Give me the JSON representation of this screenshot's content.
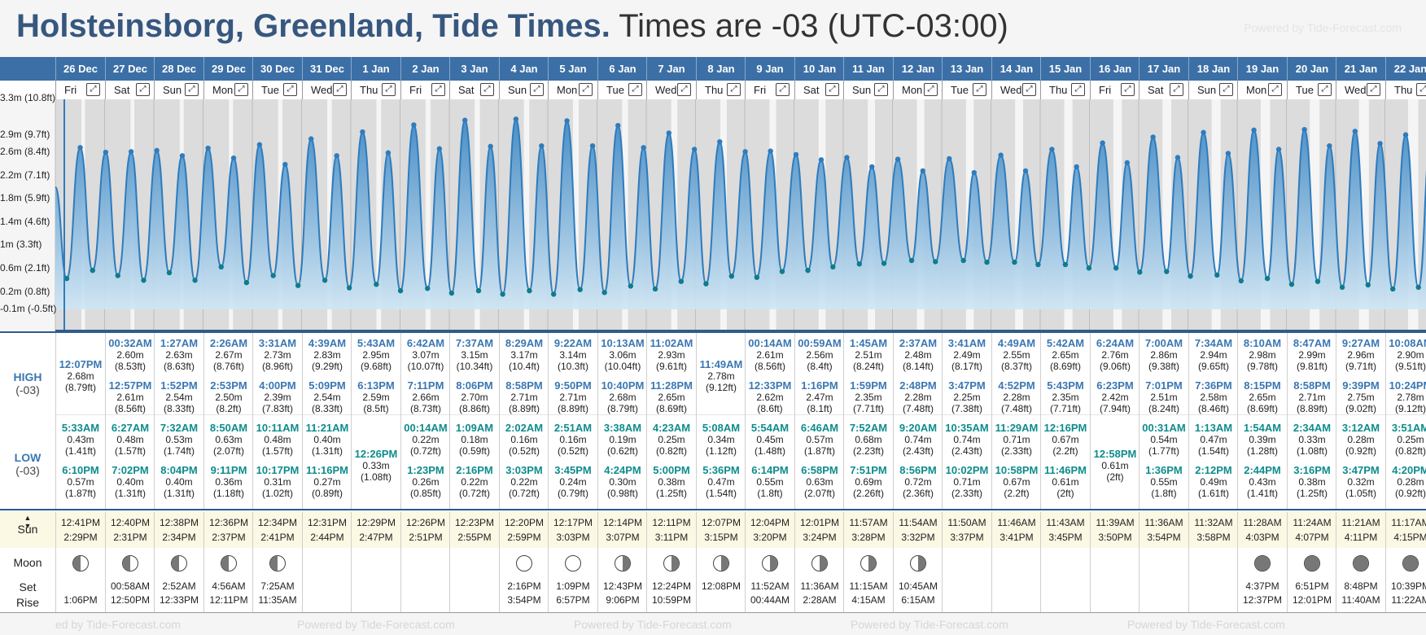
{
  "title": {
    "location": "Holsteinsborg, Greenland, Tide Times.",
    "timezone": "Times are -03 (UTC-03:00)"
  },
  "powered_by": "Powered by Tide-Forecast.com",
  "footer_text": "Powered by Tide-Forecast.com",
  "footer_fragment": "ed by Tide-Forecast.com",
  "y_axis": [
    "2.9m (9.7ft)",
    "2.6m (8.4ft)",
    "2.2m (7.1ft)",
    "1.8m (5.9ft)",
    "1.4m (4.6ft)",
    "1m (3.3ft)",
    "0.6m (2.1ft)",
    "0.2m (0.8ft)",
    "-0.1m (-0.5ft)"
  ],
  "y_axis_top_partial": "3.3m (10.8ft)",
  "row_labels": {
    "high": "HIGH",
    "low": "LOW",
    "tz": "(-03)",
    "sun": "Sun",
    "moon": "Moon",
    "set": "Set",
    "rise": "Rise"
  },
  "colors": {
    "header_bar": "#3c6fa6",
    "high_text": "#3a77b3",
    "low_text": "#0e8c8c",
    "tide_fill": "#4a90c8",
    "sun_row": "#fbf8e4"
  },
  "expand_icon": "expand-icon",
  "days": [
    {
      "date": "26 Dec",
      "wd": "Fri",
      "high": [
        {
          "t": "12:07PM",
          "m": "2.68m",
          "f": "(8.79ft)"
        }
      ],
      "low": [
        {
          "t": "5:33AM",
          "m": "0.43m",
          "f": "(1.41ft)"
        },
        {
          "t": "6:10PM",
          "m": "0.57m",
          "f": "(1.87ft)"
        }
      ],
      "sun": [
        "12:41PM",
        "2:29PM"
      ],
      "moon": "waxing",
      "set": "",
      "rise": "1:06PM"
    },
    {
      "date": "27 Dec",
      "wd": "Sat",
      "high": [
        {
          "t": "00:32AM",
          "m": "2.60m",
          "f": "(8.53ft)"
        },
        {
          "t": "12:57PM",
          "m": "2.61m",
          "f": "(8.56ft)"
        }
      ],
      "low": [
        {
          "t": "6:27AM",
          "m": "0.48m",
          "f": "(1.57ft)"
        },
        {
          "t": "7:02PM",
          "m": "0.40m",
          "f": "(1.31ft)"
        }
      ],
      "sun": [
        "12:40PM",
        "2:31PM"
      ],
      "moon": "waxing",
      "set": "00:58AM",
      "rise": "12:50PM"
    },
    {
      "date": "28 Dec",
      "wd": "Sun",
      "high": [
        {
          "t": "1:27AM",
          "m": "2.63m",
          "f": "(8.63ft)"
        },
        {
          "t": "1:52PM",
          "m": "2.54m",
          "f": "(8.33ft)"
        }
      ],
      "low": [
        {
          "t": "7:32AM",
          "m": "0.53m",
          "f": "(1.74ft)"
        },
        {
          "t": "8:04PM",
          "m": "0.40m",
          "f": "(1.31ft)"
        }
      ],
      "sun": [
        "12:38PM",
        "2:34PM"
      ],
      "moon": "waxing",
      "set": "2:52AM",
      "rise": "12:33PM"
    },
    {
      "date": "29 Dec",
      "wd": "Mon",
      "high": [
        {
          "t": "2:26AM",
          "m": "2.67m",
          "f": "(8.76ft)"
        },
        {
          "t": "2:53PM",
          "m": "2.50m",
          "f": "(8.2ft)"
        }
      ],
      "low": [
        {
          "t": "8:50AM",
          "m": "0.63m",
          "f": "(2.07ft)"
        },
        {
          "t": "9:11PM",
          "m": "0.36m",
          "f": "(1.18ft)"
        }
      ],
      "sun": [
        "12:36PM",
        "2:37PM"
      ],
      "moon": "waxing",
      "set": "4:56AM",
      "rise": "12:11PM"
    },
    {
      "date": "30 Dec",
      "wd": "Tue",
      "high": [
        {
          "t": "3:31AM",
          "m": "2.73m",
          "f": "(8.96ft)"
        },
        {
          "t": "4:00PM",
          "m": "2.39m",
          "f": "(7.83ft)"
        }
      ],
      "low": [
        {
          "t": "10:11AM",
          "m": "0.48m",
          "f": "(1.57ft)"
        },
        {
          "t": "10:17PM",
          "m": "0.31m",
          "f": "(1.02ft)"
        }
      ],
      "sun": [
        "12:34PM",
        "2:41PM"
      ],
      "moon": "waxing",
      "set": "7:25AM",
      "rise": "11:35AM"
    },
    {
      "date": "31 Dec",
      "wd": "Wed",
      "high": [
        {
          "t": "4:39AM",
          "m": "2.83m",
          "f": "(9.29ft)"
        },
        {
          "t": "5:09PM",
          "m": "2.54m",
          "f": "(8.33ft)"
        }
      ],
      "low": [
        {
          "t": "11:21AM",
          "m": "0.40m",
          "f": "(1.31ft)"
        },
        {
          "t": "11:16PM",
          "m": "0.27m",
          "f": "(0.89ft)"
        }
      ],
      "sun": [
        "12:31PM",
        "2:44PM"
      ],
      "moon": "",
      "set": "",
      "rise": ""
    },
    {
      "date": "1 Jan",
      "wd": "Thu",
      "high": [
        {
          "t": "5:43AM",
          "m": "2.95m",
          "f": "(9.68ft)"
        },
        {
          "t": "6:13PM",
          "m": "2.59m",
          "f": "(8.5ft)"
        }
      ],
      "low": [
        {
          "t": "12:26PM",
          "m": "0.33m",
          "f": "(1.08ft)"
        }
      ],
      "sun": [
        "12:29PM",
        "2:47PM"
      ],
      "moon": "",
      "set": "",
      "rise": ""
    },
    {
      "date": "2 Jan",
      "wd": "Fri",
      "high": [
        {
          "t": "6:42AM",
          "m": "3.07m",
          "f": "(10.07ft)"
        },
        {
          "t": "7:11PM",
          "m": "2.66m",
          "f": "(8.73ft)"
        }
      ],
      "low": [
        {
          "t": "00:14AM",
          "m": "0.22m",
          "f": "(0.72ft)"
        },
        {
          "t": "1:23PM",
          "m": "0.26m",
          "f": "(0.85ft)"
        }
      ],
      "sun": [
        "12:26PM",
        "2:51PM"
      ],
      "moon": "",
      "set": "",
      "rise": ""
    },
    {
      "date": "3 Jan",
      "wd": "Sat",
      "high": [
        {
          "t": "7:37AM",
          "m": "3.15m",
          "f": "(10.34ft)"
        },
        {
          "t": "8:06PM",
          "m": "2.70m",
          "f": "(8.86ft)"
        }
      ],
      "low": [
        {
          "t": "1:09AM",
          "m": "0.18m",
          "f": "(0.59ft)"
        },
        {
          "t": "2:16PM",
          "m": "0.22m",
          "f": "(0.72ft)"
        }
      ],
      "sun": [
        "12:23PM",
        "2:55PM"
      ],
      "moon": "",
      "set": "",
      "rise": ""
    },
    {
      "date": "4 Jan",
      "wd": "Sun",
      "high": [
        {
          "t": "8:29AM",
          "m": "3.17m",
          "f": "(10.4ft)"
        },
        {
          "t": "8:58PM",
          "m": "2.71m",
          "f": "(8.89ft)"
        }
      ],
      "low": [
        {
          "t": "2:02AM",
          "m": "0.16m",
          "f": "(0.52ft)"
        },
        {
          "t": "3:03PM",
          "m": "0.22m",
          "f": "(0.72ft)"
        }
      ],
      "sun": [
        "12:20PM",
        "2:59PM"
      ],
      "moon": "full",
      "set": "2:16PM",
      "rise": "3:54PM"
    },
    {
      "date": "5 Jan",
      "wd": "Mon",
      "high": [
        {
          "t": "9:22AM",
          "m": "3.14m",
          "f": "(10.3ft)"
        },
        {
          "t": "9:50PM",
          "m": "2.71m",
          "f": "(8.89ft)"
        }
      ],
      "low": [
        {
          "t": "2:51AM",
          "m": "0.16m",
          "f": "(0.52ft)"
        },
        {
          "t": "3:45PM",
          "m": "0.24m",
          "f": "(0.79ft)"
        }
      ],
      "sun": [
        "12:17PM",
        "3:03PM"
      ],
      "moon": "full",
      "set": "1:09PM",
      "rise": "6:57PM"
    },
    {
      "date": "6 Jan",
      "wd": "Tue",
      "high": [
        {
          "t": "10:13AM",
          "m": "3.06m",
          "f": "(10.04ft)"
        },
        {
          "t": "10:40PM",
          "m": "2.68m",
          "f": "(8.79ft)"
        }
      ],
      "low": [
        {
          "t": "3:38AM",
          "m": "0.19m",
          "f": "(0.62ft)"
        },
        {
          "t": "4:24PM",
          "m": "0.30m",
          "f": "(0.98ft)"
        }
      ],
      "sun": [
        "12:14PM",
        "3:07PM"
      ],
      "moon": "waning",
      "set": "12:43PM",
      "rise": "9:06PM"
    },
    {
      "date": "7 Jan",
      "wd": "Wed",
      "high": [
        {
          "t": "11:02AM",
          "m": "2.93m",
          "f": "(9.61ft)"
        },
        {
          "t": "11:28PM",
          "m": "2.65m",
          "f": "(8.69ft)"
        }
      ],
      "low": [
        {
          "t": "4:23AM",
          "m": "0.25m",
          "f": "(0.82ft)"
        },
        {
          "t": "5:00PM",
          "m": "0.38m",
          "f": "(1.25ft)"
        }
      ],
      "sun": [
        "12:11PM",
        "3:11PM"
      ],
      "moon": "waning",
      "set": "12:24PM",
      "rise": "10:59PM"
    },
    {
      "date": "8 Jan",
      "wd": "Thu",
      "high": [
        {
          "t": "11:49AM",
          "m": "2.78m",
          "f": "(9.12ft)"
        }
      ],
      "low": [
        {
          "t": "5:08AM",
          "m": "0.34m",
          "f": "(1.12ft)"
        },
        {
          "t": "5:36PM",
          "m": "0.47m",
          "f": "(1.54ft)"
        }
      ],
      "sun": [
        "12:07PM",
        "3:15PM"
      ],
      "moon": "waning",
      "set": "12:08PM",
      "rise": ""
    },
    {
      "date": "9 Jan",
      "wd": "Fri",
      "high": [
        {
          "t": "00:14AM",
          "m": "2.61m",
          "f": "(8.56ft)"
        },
        {
          "t": "12:33PM",
          "m": "2.62m",
          "f": "(8.6ft)"
        }
      ],
      "low": [
        {
          "t": "5:54AM",
          "m": "0.45m",
          "f": "(1.48ft)"
        },
        {
          "t": "6:14PM",
          "m": "0.55m",
          "f": "(1.8ft)"
        }
      ],
      "sun": [
        "12:04PM",
        "3:20PM"
      ],
      "moon": "waning",
      "set": "11:52AM",
      "rise": "00:44AM"
    },
    {
      "date": "10 Jan",
      "wd": "Sat",
      "high": [
        {
          "t": "00:59AM",
          "m": "2.56m",
          "f": "(8.4ft)"
        },
        {
          "t": "1:16PM",
          "m": "2.47m",
          "f": "(8.1ft)"
        }
      ],
      "low": [
        {
          "t": "6:46AM",
          "m": "0.57m",
          "f": "(1.87ft)"
        },
        {
          "t": "6:58PM",
          "m": "0.63m",
          "f": "(2.07ft)"
        }
      ],
      "sun": [
        "12:01PM",
        "3:24PM"
      ],
      "moon": "waning",
      "set": "11:36AM",
      "rise": "2:28AM"
    },
    {
      "date": "11 Jan",
      "wd": "Sun",
      "high": [
        {
          "t": "1:45AM",
          "m": "2.51m",
          "f": "(8.24ft)"
        },
        {
          "t": "1:59PM",
          "m": "2.35m",
          "f": "(7.71ft)"
        }
      ],
      "low": [
        {
          "t": "7:52AM",
          "m": "0.68m",
          "f": "(2.23ft)"
        },
        {
          "t": "7:51PM",
          "m": "0.69m",
          "f": "(2.26ft)"
        }
      ],
      "sun": [
        "11:57AM",
        "3:28PM"
      ],
      "moon": "waning",
      "set": "11:15AM",
      "rise": "4:15AM"
    },
    {
      "date": "12 Jan",
      "wd": "Mon",
      "high": [
        {
          "t": "2:37AM",
          "m": "2.48m",
          "f": "(8.14ft)"
        },
        {
          "t": "2:48PM",
          "m": "2.28m",
          "f": "(7.48ft)"
        }
      ],
      "low": [
        {
          "t": "9:20AM",
          "m": "0.74m",
          "f": "(2.43ft)"
        },
        {
          "t": "8:56PM",
          "m": "0.72m",
          "f": "(2.36ft)"
        }
      ],
      "sun": [
        "11:54AM",
        "3:32PM"
      ],
      "moon": "waning",
      "set": "10:45AM",
      "rise": "6:15AM"
    },
    {
      "date": "13 Jan",
      "wd": "Tue",
      "high": [
        {
          "t": "3:41AM",
          "m": "2.49m",
          "f": "(8.17ft)"
        },
        {
          "t": "3:47PM",
          "m": "2.25m",
          "f": "(7.38ft)"
        }
      ],
      "low": [
        {
          "t": "10:35AM",
          "m": "0.74m",
          "f": "(2.43ft)"
        },
        {
          "t": "10:02PM",
          "m": "0.71m",
          "f": "(2.33ft)"
        }
      ],
      "sun": [
        "11:50AM",
        "3:37PM"
      ],
      "moon": "",
      "set": "",
      "rise": ""
    },
    {
      "date": "14 Jan",
      "wd": "Wed",
      "high": [
        {
          "t": "4:49AM",
          "m": "2.55m",
          "f": "(8.37ft)"
        },
        {
          "t": "4:52PM",
          "m": "2.28m",
          "f": "(7.48ft)"
        }
      ],
      "low": [
        {
          "t": "11:29AM",
          "m": "0.71m",
          "f": "(2.33ft)"
        },
        {
          "t": "10:58PM",
          "m": "0.67m",
          "f": "(2.2ft)"
        }
      ],
      "sun": [
        "11:46AM",
        "3:41PM"
      ],
      "moon": "",
      "set": "",
      "rise": ""
    },
    {
      "date": "15 Jan",
      "wd": "Thu",
      "high": [
        {
          "t": "5:42AM",
          "m": "2.65m",
          "f": "(8.69ft)"
        },
        {
          "t": "5:43PM",
          "m": "2.35m",
          "f": "(7.71ft)"
        }
      ],
      "low": [
        {
          "t": "12:16PM",
          "m": "0.67m",
          "f": "(2.2ft)"
        },
        {
          "t": "11:46PM",
          "m": "0.61m",
          "f": "(2ft)"
        }
      ],
      "sun": [
        "11:43AM",
        "3:45PM"
      ],
      "moon": "",
      "set": "",
      "rise": ""
    },
    {
      "date": "16 Jan",
      "wd": "Fri",
      "high": [
        {
          "t": "6:24AM",
          "m": "2.76m",
          "f": "(9.06ft)"
        },
        {
          "t": "6:23PM",
          "m": "2.42m",
          "f": "(7.94ft)"
        }
      ],
      "low": [
        {
          "t": "12:58PM",
          "m": "0.61m",
          "f": "(2ft)"
        }
      ],
      "sun": [
        "11:39AM",
        "3:50PM"
      ],
      "moon": "",
      "set": "",
      "rise": ""
    },
    {
      "date": "17 Jan",
      "wd": "Sat",
      "high": [
        {
          "t": "7:00AM",
          "m": "2.86m",
          "f": "(9.38ft)"
        },
        {
          "t": "7:01PM",
          "m": "2.51m",
          "f": "(8.24ft)"
        }
      ],
      "low": [
        {
          "t": "00:31AM",
          "m": "0.54m",
          "f": "(1.77ft)"
        },
        {
          "t": "1:36PM",
          "m": "0.55m",
          "f": "(1.8ft)"
        }
      ],
      "sun": [
        "11:36AM",
        "3:54PM"
      ],
      "moon": "",
      "set": "",
      "rise": ""
    },
    {
      "date": "18 Jan",
      "wd": "Sun",
      "high": [
        {
          "t": "7:34AM",
          "m": "2.94m",
          "f": "(9.65ft)"
        },
        {
          "t": "7:36PM",
          "m": "2.58m",
          "f": "(8.46ft)"
        }
      ],
      "low": [
        {
          "t": "1:13AM",
          "m": "0.47m",
          "f": "(1.54ft)"
        },
        {
          "t": "2:12PM",
          "m": "0.49m",
          "f": "(1.61ft)"
        }
      ],
      "sun": [
        "11:32AM",
        "3:58PM"
      ],
      "moon": "",
      "set": "",
      "rise": ""
    },
    {
      "date": "19 Jan",
      "wd": "Mon",
      "high": [
        {
          "t": "8:10AM",
          "m": "2.98m",
          "f": "(9.78ft)"
        },
        {
          "t": "8:15PM",
          "m": "2.65m",
          "f": "(8.69ft)"
        }
      ],
      "low": [
        {
          "t": "1:54AM",
          "m": "0.39m",
          "f": "(1.28ft)"
        },
        {
          "t": "2:44PM",
          "m": "0.43m",
          "f": "(1.41ft)"
        }
      ],
      "sun": [
        "11:28AM",
        "4:03PM"
      ],
      "moon": "new",
      "set": "4:37PM",
      "rise": "12:37PM"
    },
    {
      "date": "20 Jan",
      "wd": "Tue",
      "high": [
        {
          "t": "8:47AM",
          "m": "2.99m",
          "f": "(9.81ft)"
        },
        {
          "t": "8:58PM",
          "m": "2.71m",
          "f": "(8.89ft)"
        }
      ],
      "low": [
        {
          "t": "2:34AM",
          "m": "0.33m",
          "f": "(1.08ft)"
        },
        {
          "t": "3:16PM",
          "m": "0.38m",
          "f": "(1.25ft)"
        }
      ],
      "sun": [
        "11:24AM",
        "4:07PM"
      ],
      "moon": "new",
      "set": "6:51PM",
      "rise": "12:01PM"
    },
    {
      "date": "21 Jan",
      "wd": "Wed",
      "high": [
        {
          "t": "9:27AM",
          "m": "2.96m",
          "f": "(9.71ft)"
        },
        {
          "t": "9:39PM",
          "m": "2.75m",
          "f": "(9.02ft)"
        }
      ],
      "low": [
        {
          "t": "3:12AM",
          "m": "0.28m",
          "f": "(0.92ft)"
        },
        {
          "t": "3:47PM",
          "m": "0.32m",
          "f": "(1.05ft)"
        }
      ],
      "sun": [
        "11:21AM",
        "4:11PM"
      ],
      "moon": "new",
      "set": "8:48PM",
      "rise": "11:40AM"
    },
    {
      "date": "22 Jan",
      "wd": "Thu",
      "high": [
        {
          "t": "10:08AM",
          "m": "2.90m",
          "f": "(9.51ft)"
        },
        {
          "t": "10:24PM",
          "m": "2.78m",
          "f": "(9.12ft)"
        }
      ],
      "low": [
        {
          "t": "3:51AM",
          "m": "0.25m",
          "f": "(0.82ft)"
        },
        {
          "t": "4:20PM",
          "m": "0.28m",
          "f": "(0.92ft)"
        }
      ],
      "sun": [
        "11:17AM",
        "4:15PM"
      ],
      "moon": "new",
      "set": "10:39PM",
      "rise": "11:22AM"
    }
  ]
}
